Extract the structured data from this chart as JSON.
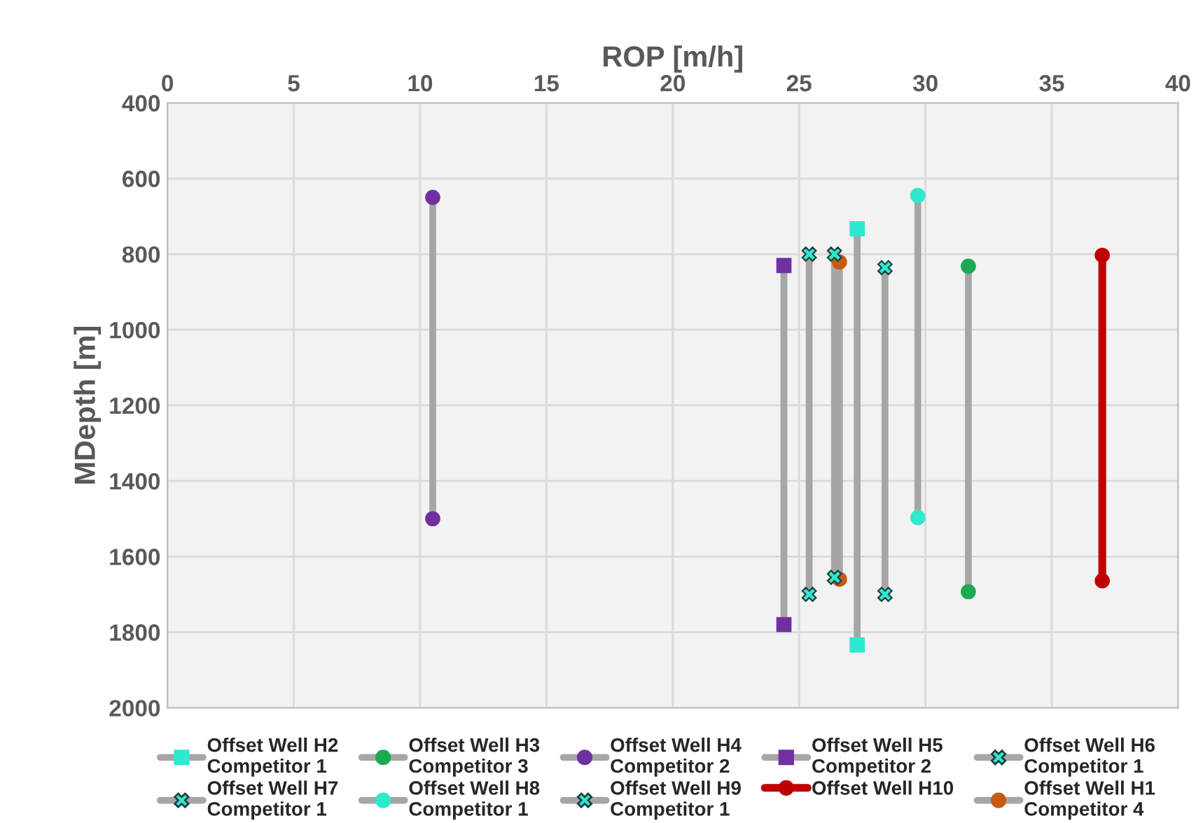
{
  "chart_data": {
    "type": "line",
    "xlabel": "ROP [m/h]",
    "ylabel": "MDepth [m]",
    "xlim": [
      0,
      40
    ],
    "xticks": [
      0,
      5,
      10,
      15,
      20,
      25,
      30,
      35,
      40
    ],
    "ylim": [
      2000,
      400
    ],
    "yticks": [
      400,
      600,
      800,
      1000,
      1200,
      1400,
      1600,
      1800,
      2000
    ],
    "grid": true,
    "legend": "bottom",
    "series": [
      {
        "name": "Offset Well H2\nCompetitor 1",
        "color": "#a6a6a6",
        "colors": [
          "#2ee8cf",
          "#2ee8cf"
        ],
        "marker": "square",
        "x": [
          27.3,
          27.3
        ],
        "values": [
          733,
          1834
        ]
      },
      {
        "name": "Offset Well H3\nCompetitor 3",
        "color": "#a6a6a6",
        "colors": [
          "#1aaa55",
          "#1aaa55"
        ],
        "marker": "circle",
        "x": [
          31.7,
          31.7
        ],
        "values": [
          832,
          1693
        ]
      },
      {
        "name": "Offset Well H4\nCompetitor 2",
        "color": "#a6a6a6",
        "colors": [
          "#7030a0",
          "#7030a0"
        ],
        "marker": "circle",
        "x": [
          10.5,
          10.5
        ],
        "values": [
          650,
          1500
        ]
      },
      {
        "name": "Offset Well H5\nCompetitor 2",
        "color": "#a6a6a6",
        "colors": [
          "#7030a0",
          "#7030a0"
        ],
        "marker": "square",
        "x": [
          24.4,
          24.4
        ],
        "values": [
          830,
          1780
        ]
      },
      {
        "name": "Offset Well H6\nCompetitor 1",
        "color": "#a6a6a6",
        "colors": [
          "#2ee8cf",
          "#2ee8cf"
        ],
        "marker": "cross",
        "x": [
          25.4,
          25.4
        ],
        "values": [
          800,
          1700
        ]
      },
      {
        "name": "Offset Well H7\nCompetitor 1",
        "color": "#a6a6a6",
        "colors": [
          "#2ee8cf",
          "#2ee8cf"
        ],
        "marker": "cross",
        "x": [
          26.4,
          26.4
        ],
        "values": [
          800,
          1655
        ]
      },
      {
        "name": "Offset Well H8\nCompetitor 1",
        "color": "#a6a6a6",
        "colors": [
          "#2ee8cf",
          "#2ee8cf"
        ],
        "marker": "circle",
        "x": [
          29.7,
          29.7
        ],
        "values": [
          645,
          1497
        ]
      },
      {
        "name": "Offset Well H9\nCompetitor 1",
        "color": "#a6a6a6",
        "colors": [
          "#2ee8cf",
          "#2ee8cf"
        ],
        "marker": "cross",
        "x": [
          28.4,
          28.4
        ],
        "values": [
          836,
          1700
        ]
      },
      {
        "name": "Offset Well H10",
        "color": "#c00000",
        "colors": [
          "#c00000",
          "#c00000"
        ],
        "marker": "circle",
        "x": [
          37.0,
          37.0
        ],
        "values": [
          803,
          1664
        ]
      },
      {
        "name": "Offset Well H1\nCompetitor 4",
        "color": "#a6a6a6",
        "colors": [
          "#c55a11",
          "#c55a11"
        ],
        "marker": "circle",
        "x": [
          26.6,
          26.6
        ],
        "values": [
          821,
          1660
        ]
      }
    ]
  }
}
